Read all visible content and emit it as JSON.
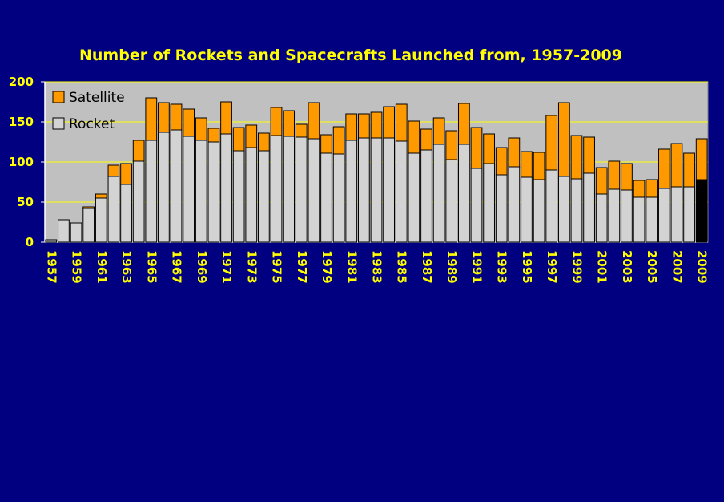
{
  "chart_data": {
    "type": "bar",
    "stacked": true,
    "title": "Number of Rockets and Spacecrafts Launched from, 1957-2009",
    "xlabel": "",
    "ylabel": "",
    "ylim": [
      0,
      200
    ],
    "yticks": [
      0,
      50,
      100,
      150,
      200
    ],
    "grid": true,
    "legend_position": "top-left",
    "categories": [
      1957,
      1958,
      1959,
      1960,
      1961,
      1962,
      1963,
      1964,
      1965,
      1966,
      1967,
      1968,
      1969,
      1970,
      1971,
      1972,
      1973,
      1974,
      1975,
      1976,
      1977,
      1978,
      1979,
      1980,
      1981,
      1982,
      1983,
      1984,
      1985,
      1986,
      1987,
      1988,
      1989,
      1990,
      1991,
      1992,
      1993,
      1994,
      1995,
      1996,
      1997,
      1998,
      1999,
      2000,
      2001,
      2002,
      2003,
      2004,
      2005,
      2006,
      2007,
      2008,
      2009
    ],
    "tick_labels": [
      "1957",
      "1959",
      "1961",
      "1963",
      "1965",
      "1967",
      "1969",
      "1971",
      "1973",
      "1975",
      "1977",
      "1979",
      "1981",
      "1983",
      "1985",
      "1987",
      "1989",
      "1991",
      "1993",
      "1995",
      "1997",
      "1999",
      "2001",
      "2003",
      "2005",
      "2007",
      "2009"
    ],
    "series": [
      {
        "name": "Rocket",
        "color": "#d3d3d3",
        "values": [
          3,
          28,
          24,
          42,
          55,
          82,
          72,
          101,
          127,
          137,
          140,
          132,
          127,
          125,
          135,
          114,
          118,
          114,
          133,
          132,
          131,
          129,
          111,
          110,
          127,
          130,
          130,
          130,
          126,
          111,
          115,
          122,
          103,
          122,
          92,
          98,
          84,
          94,
          81,
          78,
          90,
          82,
          79,
          86,
          60,
          66,
          65,
          56,
          56,
          67,
          69,
          69,
          78
        ]
      },
      {
        "name": "Satellite",
        "color": "#ff9900",
        "values": [
          0,
          0,
          0,
          2,
          5,
          14,
          26,
          26,
          53,
          37,
          32,
          34,
          28,
          17,
          40,
          29,
          28,
          22,
          35,
          32,
          16,
          45,
          23,
          34,
          33,
          30,
          32,
          39,
          46,
          40,
          26,
          33,
          36,
          51,
          51,
          37,
          34,
          36,
          32,
          34,
          68,
          92,
          54,
          45,
          33,
          35,
          33,
          21,
          22,
          49,
          54,
          42,
          51
        ]
      }
    ],
    "highlight_last_rocket_color": "#000000"
  }
}
